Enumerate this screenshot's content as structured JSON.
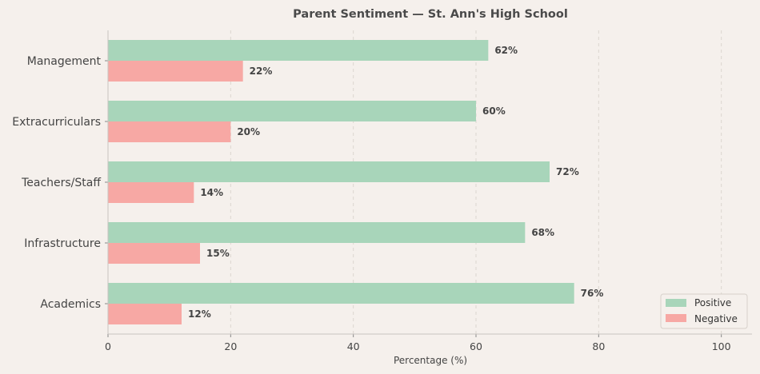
{
  "chart_data": {
    "type": "bar",
    "orientation": "horizontal",
    "title": "Parent Sentiment — St. Ann's High School",
    "xlabel": "Percentage (%)",
    "ylabel": "",
    "xlim": [
      0,
      105
    ],
    "xticks": [
      0,
      20,
      40,
      60,
      80,
      100
    ],
    "categories": [
      "Management",
      "Extracurriculars",
      "Teachers/Staff",
      "Infrastructure",
      "Academics"
    ],
    "series": [
      {
        "name": "Positive",
        "color": "#a8d5ba",
        "values": [
          62,
          60,
          72,
          68,
          76
        ]
      },
      {
        "name": "Negative",
        "color": "#f7a8a4",
        "values": [
          22,
          20,
          14,
          15,
          12
        ]
      }
    ],
    "value_suffix": "%",
    "grid": true,
    "legend_position": "bottom-right"
  }
}
